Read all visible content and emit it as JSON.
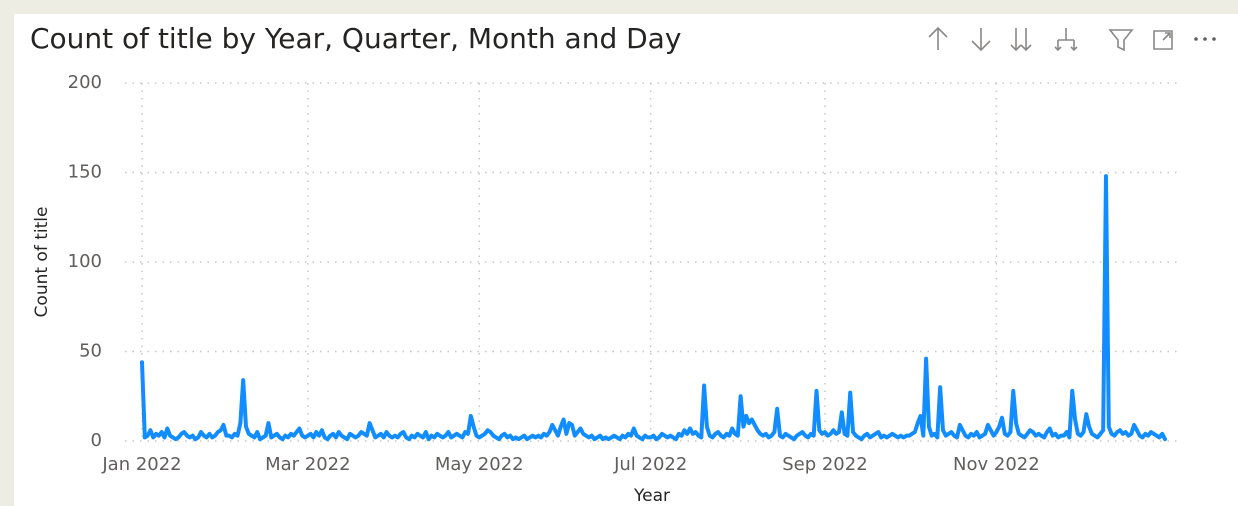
{
  "chart_data": {
    "type": "line",
    "title": "Count of title by Year, Quarter, Month and Day",
    "x_label": "Year",
    "y_label": "Count of title",
    "categories": [
      "Jan 2022",
      null,
      null,
      null,
      null,
      null,
      null,
      null,
      null,
      null,
      null,
      null,
      null,
      null,
      null,
      null,
      null,
      null,
      null,
      null,
      null,
      null,
      null,
      null,
      null,
      null,
      null,
      null,
      null,
      null,
      null,
      null,
      null,
      null,
      null,
      null,
      null,
      null,
      null,
      null,
      null,
      null,
      null,
      null,
      null,
      null,
      null,
      null,
      null,
      null,
      null,
      null,
      null,
      null,
      null,
      null,
      null,
      null,
      null,
      "Mar 2022",
      null,
      null,
      null,
      null,
      null,
      null,
      null,
      null,
      null,
      null,
      null,
      null,
      null,
      null,
      null,
      null,
      null,
      null,
      null,
      null,
      null,
      null,
      null,
      null,
      null,
      null,
      null,
      null,
      null,
      null,
      null,
      null,
      null,
      null,
      null,
      null,
      null,
      null,
      null,
      null,
      null,
      null,
      null,
      null,
      null,
      null,
      null,
      null,
      null,
      null,
      null,
      null,
      null,
      null,
      null,
      null,
      null,
      null,
      null,
      null,
      "May 2022",
      null,
      null,
      null,
      null,
      null,
      null,
      null,
      null,
      null,
      null,
      null,
      null,
      null,
      null,
      null,
      null,
      null,
      null,
      null,
      null,
      null,
      null,
      null,
      null,
      null,
      null,
      null,
      null,
      null,
      null,
      null,
      null,
      null,
      null,
      null,
      null,
      null,
      null,
      null,
      null,
      null,
      null,
      null,
      null,
      null,
      null,
      null,
      null,
      null,
      null,
      null,
      null,
      null,
      null,
      null,
      null,
      null,
      null,
      null,
      null,
      "Jul 2022",
      null,
      null,
      null,
      null,
      null,
      null,
      null,
      null,
      null,
      null,
      null,
      null,
      null,
      null,
      null,
      null,
      null,
      null,
      null,
      null,
      null,
      null,
      null,
      null,
      null,
      null,
      null,
      null,
      null,
      null,
      null,
      null,
      null,
      null,
      null,
      null,
      null,
      null,
      null,
      null,
      null,
      null,
      null,
      null,
      null,
      null,
      null,
      null,
      null,
      null,
      null,
      null,
      null,
      null,
      null,
      null,
      null,
      null,
      null,
      null,
      null,
      "Sep 2022",
      null,
      null,
      null,
      null,
      null,
      null,
      null,
      null,
      null,
      null,
      null,
      null,
      null,
      null,
      null,
      null,
      null,
      null,
      null,
      null,
      null,
      null,
      null,
      null,
      null,
      null,
      null,
      null,
      null,
      null,
      null,
      null,
      null,
      null,
      null,
      null,
      null,
      null,
      null,
      null,
      null,
      null,
      null,
      null,
      null,
      null,
      null,
      null,
      null,
      null,
      null,
      null,
      null,
      null,
      null,
      null,
      null,
      null,
      null,
      null,
      "Nov 2022",
      null,
      null,
      null,
      null,
      null,
      null,
      null,
      null,
      null,
      null,
      null,
      null,
      null,
      null,
      null,
      null,
      null,
      null,
      null,
      null,
      null,
      null,
      null,
      null,
      null,
      null,
      null,
      null,
      null,
      null,
      null,
      null,
      null,
      null,
      null,
      null,
      null,
      null,
      null,
      null,
      null,
      null,
      null,
      null,
      null,
      null,
      null,
      null,
      null,
      null,
      null,
      null,
      null,
      null,
      null,
      null,
      null,
      null,
      null,
      null
    ],
    "series": [
      {
        "name": "Count of title",
        "color": "#118dff",
        "values": [
          44,
          2,
          3,
          6,
          2,
          4,
          3,
          5,
          2,
          7,
          3,
          2,
          1,
          2,
          4,
          5,
          3,
          2,
          3,
          1,
          2,
          5,
          3,
          2,
          4,
          2,
          3,
          5,
          6,
          9,
          3,
          3,
          2,
          4,
          3,
          10,
          34,
          8,
          4,
          3,
          2,
          5,
          1,
          2,
          3,
          10,
          2,
          3,
          4,
          2,
          1,
          3,
          2,
          4,
          3,
          5,
          7,
          3,
          2,
          3,
          4,
          2,
          5,
          3,
          6,
          2,
          1,
          3,
          4,
          2,
          5,
          3,
          2,
          1,
          4,
          3,
          2,
          3,
          5,
          4,
          3,
          10,
          6,
          2,
          3,
          4,
          2,
          5,
          3,
          2,
          3,
          2,
          4,
          5,
          2,
          1,
          3,
          2,
          4,
          3,
          2,
          5,
          1,
          3,
          2,
          4,
          3,
          2,
          3,
          5,
          2,
          3,
          4,
          3,
          2,
          5,
          4,
          14,
          8,
          3,
          2,
          3,
          4,
          6,
          5,
          3,
          2,
          1,
          3,
          4,
          2,
          3,
          1,
          2,
          1,
          2,
          3,
          1,
          2,
          3,
          2,
          3,
          2,
          4,
          3,
          5,
          9,
          6,
          3,
          8,
          12,
          4,
          10,
          9,
          3,
          5,
          7,
          4,
          3,
          2,
          3,
          1,
          2,
          3,
          1,
          2,
          1,
          2,
          3,
          2,
          1,
          3,
          2,
          4,
          3,
          7,
          3,
          2,
          1,
          3,
          2,
          2,
          3,
          1,
          2,
          4,
          3,
          2,
          3,
          2,
          1,
          4,
          3,
          6,
          4,
          7,
          4,
          5,
          3,
          2,
          31,
          8,
          3,
          2,
          4,
          5,
          3,
          2,
          4,
          3,
          7,
          4,
          3,
          25,
          8,
          14,
          10,
          12,
          9,
          6,
          4,
          3,
          4,
          2,
          3,
          5,
          18,
          3,
          2,
          4,
          3,
          2,
          1,
          3,
          4,
          5,
          3,
          2,
          4,
          3,
          28,
          6,
          4,
          5,
          3,
          4,
          6,
          4,
          5,
          16,
          4,
          3,
          27,
          5,
          3,
          2,
          1,
          3,
          4,
          2,
          3,
          4,
          5,
          2,
          3,
          2,
          3,
          4,
          3,
          2,
          3,
          2,
          3,
          3,
          4,
          5,
          10,
          14,
          3,
          46,
          8,
          3,
          4,
          2,
          30,
          6,
          3,
          4,
          5,
          3,
          2,
          9,
          6,
          3,
          2,
          4,
          3,
          5,
          2,
          3,
          4,
          9,
          6,
          3,
          5,
          8,
          13,
          4,
          3,
          5,
          28,
          10,
          4,
          3,
          2,
          4,
          6,
          5,
          3,
          4,
          3,
          2,
          5,
          7,
          3,
          4,
          2,
          3,
          3,
          5,
          2,
          28,
          12,
          4,
          3,
          5,
          15,
          8,
          4,
          3,
          2,
          4,
          6,
          148,
          8,
          4,
          3,
          5,
          6,
          4,
          5,
          3,
          4,
          9,
          6,
          3,
          2,
          4,
          3,
          5,
          4,
          3,
          2,
          4,
          1
        ]
      }
    ],
    "ylim": [
      0,
      200
    ],
    "yticks": [
      0,
      50,
      100,
      150,
      200
    ],
    "grid": true
  }
}
